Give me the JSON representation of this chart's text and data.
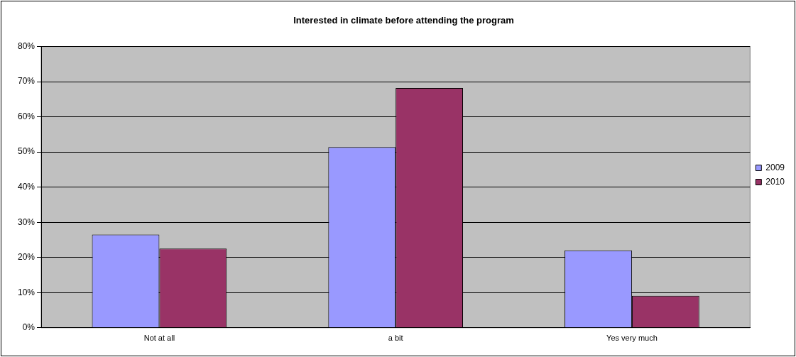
{
  "chart_data": {
    "type": "bar",
    "title": "Interested in climate before attending the program",
    "categories": [
      "Not at all",
      "a bit",
      "Yes very much"
    ],
    "series": [
      {
        "name": "2009",
        "color": "#9999ff",
        "values": [
          26.5,
          51.4,
          22.0
        ]
      },
      {
        "name": "2010",
        "color": "#993366",
        "values": [
          22.5,
          68.2,
          9.1
        ]
      }
    ],
    "ylim": [
      0,
      80
    ],
    "yticks": [
      {
        "value": 0,
        "label": "0%"
      },
      {
        "value": 10,
        "label": "10%"
      },
      {
        "value": 20,
        "label": "20%"
      },
      {
        "value": 30,
        "label": "30%"
      },
      {
        "value": 40,
        "label": "40%"
      },
      {
        "value": 50,
        "label": "50%"
      },
      {
        "value": 60,
        "label": "60%"
      },
      {
        "value": 70,
        "label": "70%"
      },
      {
        "value": 80,
        "label": "80%"
      }
    ],
    "grid": "y",
    "legend": "right"
  }
}
